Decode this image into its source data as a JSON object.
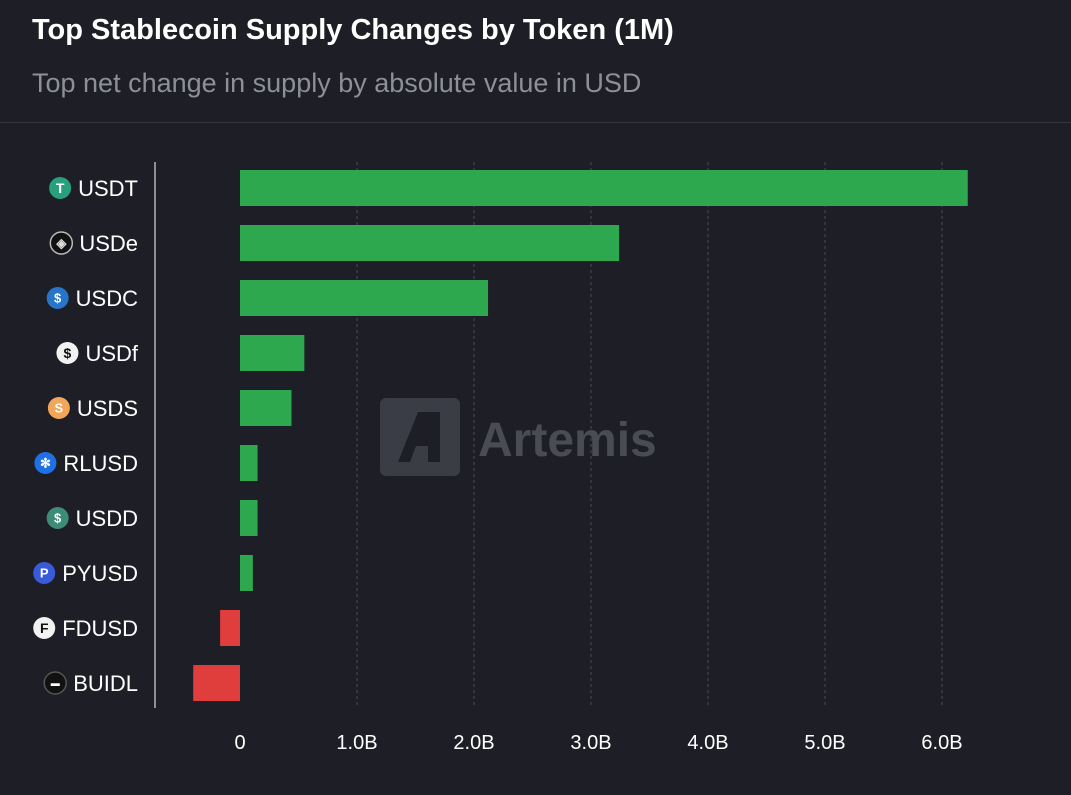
{
  "header": {
    "title": "Top Stablecoin Supply Changes by Token (1M)",
    "subtitle": "Top net change in supply by absolute value in USD"
  },
  "watermark": {
    "text": "Artemis"
  },
  "colors": {
    "positive": "#2ea84f",
    "negative": "#e03d3d",
    "background": "#1e1f26",
    "grid": "#4a4c55"
  },
  "chart_data": {
    "type": "bar",
    "orientation": "horizontal",
    "title": "Top Stablecoin Supply Changes by Token (1M)",
    "subtitle": "Top net change in supply by absolute value in USD",
    "categories": [
      "USDT",
      "USDe",
      "USDC",
      "USDf",
      "USDS",
      "RLUSD",
      "USDD",
      "PYUSD",
      "FDUSD",
      "BUIDL"
    ],
    "values": [
      6.22,
      3.24,
      2.12,
      0.55,
      0.44,
      0.15,
      0.15,
      0.11,
      -0.17,
      -0.4
    ],
    "value_unit": "billion USD",
    "xlim": [
      -0.4,
      6.3
    ],
    "xticks": [
      0,
      1,
      2,
      3,
      4,
      5,
      6
    ],
    "xtick_labels": [
      "0",
      "1.0B",
      "2.0B",
      "3.0B",
      "4.0B",
      "5.0B",
      "6.0B"
    ],
    "grid": "vertical-dashed",
    "icons": [
      "tether-icon",
      "ethena-icon",
      "usdc-icon",
      "falcon-icon",
      "sky-icon",
      "ripple-icon",
      "usdd-icon",
      "paypal-icon",
      "fdusd-icon",
      "blackrock-icon"
    ]
  }
}
